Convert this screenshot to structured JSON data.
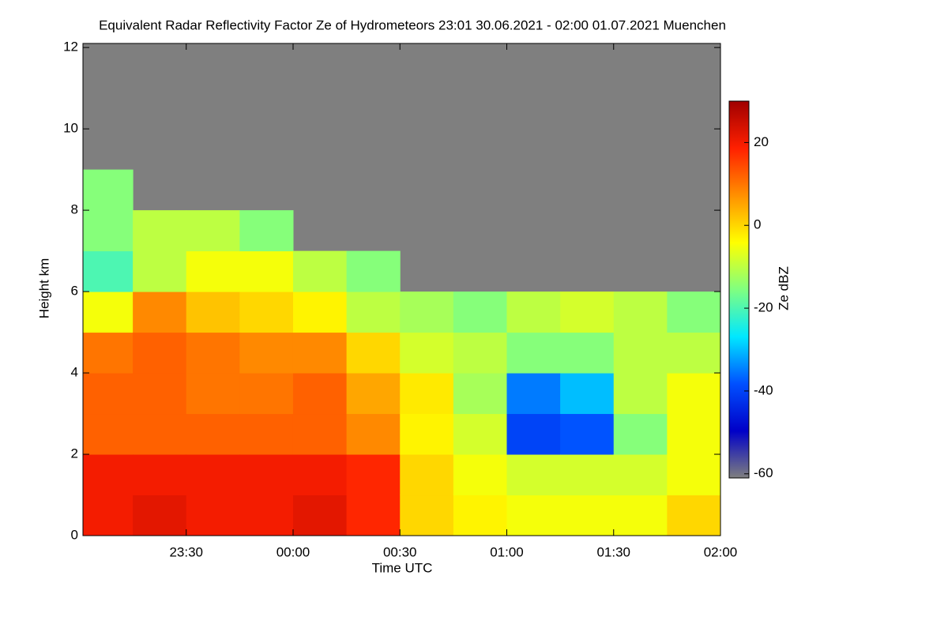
{
  "chart_data": {
    "type": "heatmap",
    "title": "Equivalent Radar Reflectivity Factor Ze of Hydrometeors   23:01 30.06.2021 - 02:00 01.07.2021 Muenchen",
    "xlabel": "Time UTC",
    "ylabel": "Height km",
    "colorbar_label": "Ze dBZ",
    "xlim": [
      23.0167,
      26.0
    ],
    "xticks": [
      {
        "value": 23.5,
        "label": "23:30"
      },
      {
        "value": 24.0,
        "label": "00:00"
      },
      {
        "value": 24.5,
        "label": "00:30"
      },
      {
        "value": 25.0,
        "label": "01:00"
      },
      {
        "value": 25.5,
        "label": "01:30"
      },
      {
        "value": 26.0,
        "label": "02:00"
      }
    ],
    "ylim": [
      0,
      12.1
    ],
    "yticks": [
      0,
      2,
      4,
      6,
      8,
      10,
      12
    ],
    "clim": [
      -61,
      30
    ],
    "cticks": [
      -60,
      -40,
      -20,
      0,
      20
    ],
    "colors": [
      "#7f7f7f",
      "#0000c8",
      "#0050ff",
      "#00e8ff",
      "#80ff80",
      "#ffff00",
      "#ff9000",
      "#ff2000",
      "#a00000"
    ],
    "xbins": [
      23.0167,
      23.25,
      23.5,
      23.75,
      24.0,
      24.25,
      24.5,
      24.75,
      25.0,
      25.25,
      25.5,
      25.75,
      26.0
    ],
    "ybins": [
      0,
      1,
      2,
      3,
      4,
      5,
      6,
      7,
      8,
      9
    ],
    "z": [
      [
        20,
        20,
        12,
        12,
        10,
        -5,
        -20,
        -15,
        -15
      ],
      [
        22,
        20,
        12,
        12,
        12,
        8,
        -10,
        -10,
        null
      ],
      [
        20,
        20,
        12,
        10,
        10,
        2,
        -5,
        -10,
        null
      ],
      [
        20,
        20,
        12,
        10,
        8,
        0,
        -5,
        -15,
        null
      ],
      [
        22,
        20,
        12,
        12,
        8,
        -3,
        -10,
        null,
        null
      ],
      [
        18,
        18,
        8,
        5,
        0,
        -10,
        -15,
        null,
        null
      ],
      [
        0,
        0,
        -3,
        -2,
        -8,
        -12,
        null,
        null,
        null
      ],
      [
        -3,
        -5,
        -8,
        -12,
        -10,
        -15,
        null,
        null,
        null
      ],
      [
        -5,
        -8,
        -40,
        -35,
        -15,
        -10,
        null,
        null,
        null
      ],
      [
        -5,
        -8,
        -38,
        -30,
        -15,
        -8,
        null,
        null,
        null
      ],
      [
        -5,
        -8,
        -15,
        -10,
        -10,
        -10,
        null,
        null,
        null
      ],
      [
        0,
        -5,
        -5,
        -5,
        -10,
        -15,
        null,
        null,
        null
      ]
    ]
  }
}
